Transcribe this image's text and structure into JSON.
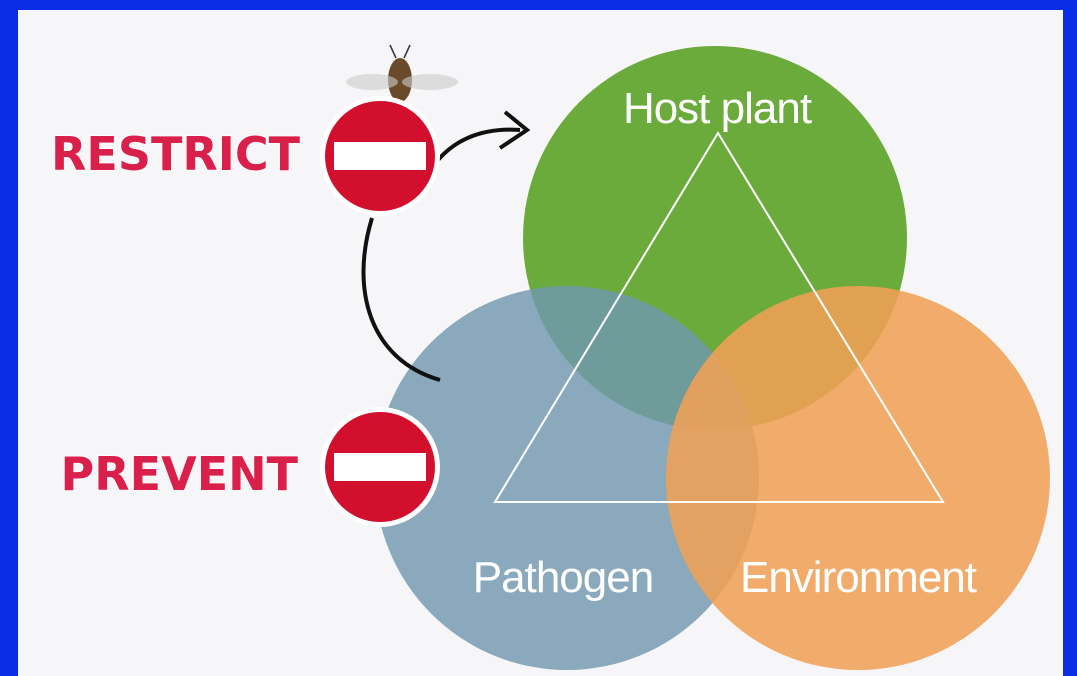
{
  "actions": [
    {
      "label": "RESTRICT"
    },
    {
      "label": "PREVENT"
    }
  ],
  "nodes": [
    {
      "label": "Host plant"
    },
    {
      "label": "Pathogen"
    },
    {
      "label": "Environment"
    }
  ]
}
